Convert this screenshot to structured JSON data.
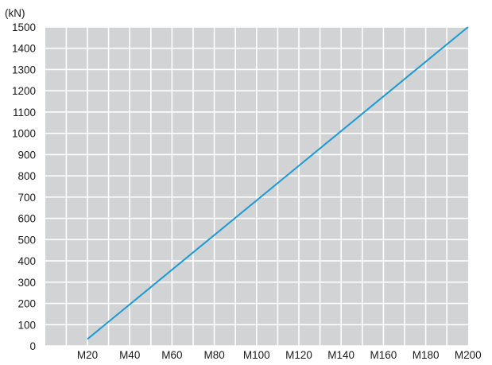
{
  "chart_data": {
    "type": "line",
    "title": "",
    "xlabel": "",
    "ylabel": "(kN)",
    "categories": [
      "M20",
      "M40",
      "M60",
      "M80",
      "M100",
      "M120",
      "M140",
      "M160",
      "M180",
      "M200"
    ],
    "ylim": [
      0,
      1500
    ],
    "yticks": [
      "0",
      "100",
      "200",
      "300",
      "400",
      "500",
      "600",
      "700",
      "800",
      "900",
      "1000",
      "1100",
      "1200",
      "1300",
      "1400",
      "1500"
    ],
    "series": [
      {
        "x": [
          "M20",
          "M200"
        ],
        "values": [
          32,
          1500
        ]
      }
    ],
    "grid": true,
    "colors": {
      "plot_background": "#d2d3d5",
      "grid": "#ffffff",
      "line": "#1a9ad6",
      "text": "#1a1a1a"
    }
  }
}
